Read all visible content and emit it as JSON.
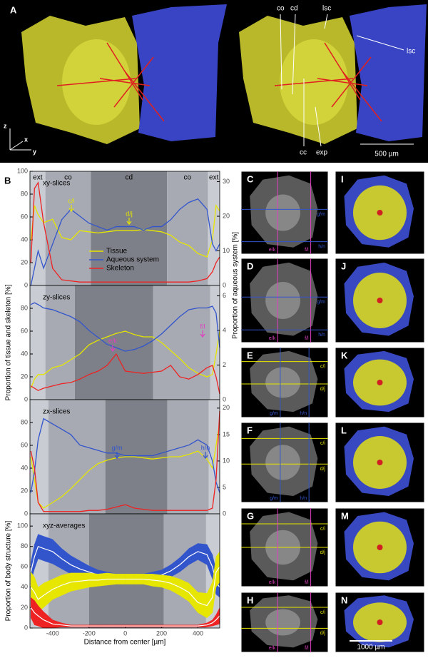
{
  "panel_a": {
    "label": "A",
    "labels": [
      "co",
      "cd",
      "lsc",
      "lsc",
      "cc",
      "exp"
    ],
    "axes": [
      "z",
      "x",
      "y"
    ],
    "scale_bar": "500 µm"
  },
  "panel_b": {
    "label": "B",
    "ylabel_left": "Proportion of tissue and skeleton [%]",
    "ylabel_right": "Proportion of aqueous system [%]"
  },
  "chart_data": [
    {
      "type": "line",
      "title": "xy-slices",
      "x": [
        -520,
        -500,
        -480,
        -450,
        -400,
        -350,
        -300,
        -250,
        -200,
        -150,
        -100,
        -50,
        0,
        50,
        100,
        150,
        200,
        250,
        300,
        350,
        400,
        450,
        480,
        500,
        520
      ],
      "xlim": [
        -525,
        520
      ],
      "ylim": [
        0,
        100
      ],
      "yticks": [
        0,
        20,
        40,
        60,
        80,
        100
      ],
      "y2lim": [
        0,
        33
      ],
      "y2ticks": [
        0,
        10,
        20,
        30
      ],
      "zones": [
        {
          "label": "ext",
          "range": [
            -525,
            -440
          ],
          "color": "#c9ccd3"
        },
        {
          "label": "co",
          "range": [
            -440,
            -190
          ],
          "color": "#a7aab2"
        },
        {
          "label": "cd",
          "range": [
            -190,
            230
          ],
          "color": "#7d8088"
        },
        {
          "label": "co",
          "range": [
            230,
            455
          ],
          "color": "#a7aab2"
        },
        {
          "label": "ext",
          "range": [
            455,
            520
          ],
          "color": "#c9ccd3"
        }
      ],
      "series": [
        {
          "name": "Tissue",
          "color": "#e6e600",
          "values": [
            40,
            70,
            62,
            55,
            58,
            42,
            40,
            48,
            47,
            46,
            47,
            48,
            48,
            48,
            49,
            48,
            47,
            44,
            38,
            35,
            28,
            25,
            40,
            70,
            65
          ]
        },
        {
          "name": "Aqueous system",
          "color": "#3355cc",
          "axis": "y2",
          "values": [
            0,
            5,
            10,
            5,
            12,
            19,
            22,
            20,
            18,
            17,
            16,
            17,
            17,
            17,
            16,
            17,
            17,
            19,
            22,
            24,
            25,
            22,
            12,
            10,
            12
          ]
        },
        {
          "name": "Skeleton",
          "color": "#ee2222",
          "values": [
            20,
            85,
            90,
            55,
            15,
            5,
            4,
            3,
            3,
            3,
            3,
            3,
            3,
            3,
            3,
            3,
            3,
            3,
            3,
            3,
            4,
            6,
            12,
            20,
            25
          ]
        }
      ],
      "annotations": [
        {
          "text": "c/i",
          "color": "#e6e600"
        },
        {
          "text": "d/j",
          "color": "#e6e600"
        }
      ]
    },
    {
      "type": "line",
      "title": "zy-slices",
      "x": [
        -520,
        -500,
        -480,
        -450,
        -400,
        -350,
        -300,
        -250,
        -200,
        -150,
        -100,
        -50,
        0,
        50,
        100,
        150,
        200,
        250,
        300,
        350,
        400,
        450,
        480,
        500,
        520
      ],
      "xlim": [
        -525,
        520
      ],
      "ylim": [
        0,
        100
      ],
      "yticks": [
        0,
        20,
        40,
        60,
        80
      ],
      "y2lim": [
        0,
        6.6
      ],
      "y2ticks": [
        0,
        2,
        4,
        6
      ],
      "zones": [
        {
          "range": [
            -525,
            -440
          ],
          "color": "#c9ccd3"
        },
        {
          "range": [
            -440,
            -278
          ],
          "color": "#a7aab2"
        },
        {
          "range": [
            -278,
            153
          ],
          "color": "#7d8088"
        },
        {
          "range": [
            153,
            467
          ],
          "color": "#a7aab2"
        },
        {
          "range": [
            467,
            520
          ],
          "color": "#c9ccd3"
        }
      ],
      "series": [
        {
          "color": "#e6e600",
          "values": [
            10,
            18,
            22,
            22,
            28,
            30,
            35,
            40,
            48,
            52,
            55,
            58,
            60,
            57,
            55,
            55,
            50,
            43,
            36,
            28,
            23,
            20,
            22,
            40,
            60
          ]
        },
        {
          "color": "#3355cc",
          "axis": "y2",
          "values": [
            5.5,
            5.6,
            5.5,
            5.3,
            5.2,
            5.0,
            4.8,
            4.5,
            4.0,
            3.6,
            3.2,
            3.0,
            2.8,
            2.9,
            3.1,
            3.4,
            3.8,
            4.3,
            4.8,
            5.2,
            5.3,
            5.3,
            5.4,
            5.0,
            3.0
          ]
        },
        {
          "color": "#ee2222",
          "values": [
            12,
            10,
            8,
            10,
            12,
            14,
            15,
            18,
            22,
            25,
            30,
            40,
            25,
            24,
            23,
            24,
            25,
            30,
            20,
            18,
            22,
            28,
            30,
            20,
            5
          ]
        }
      ],
      "annotations": [
        {
          "text": "e/k",
          "color": "#e040c0"
        },
        {
          "text": "f/l",
          "color": "#e040c0"
        }
      ]
    },
    {
      "type": "line",
      "title": "zx-slices",
      "x": [
        -520,
        -500,
        -480,
        -450,
        -400,
        -350,
        -300,
        -250,
        -200,
        -150,
        -100,
        -50,
        0,
        50,
        100,
        150,
        200,
        250,
        300,
        350,
        400,
        450,
        480,
        500,
        520
      ],
      "xlim": [
        -525,
        520
      ],
      "ylim": [
        0,
        100
      ],
      "yticks": [
        0,
        20,
        40,
        60,
        80
      ],
      "y2lim": [
        0,
        21.6
      ],
      "y2ticks": [
        0,
        5,
        10,
        15,
        20
      ],
      "zones": [
        {
          "range": [
            -525,
            -423
          ],
          "color": "#c9ccd3"
        },
        {
          "range": [
            -423,
            -110
          ],
          "color": "#a7aab2"
        },
        {
          "range": [
            -110,
            231
          ],
          "color": "#7d8088"
        },
        {
          "range": [
            231,
            460
          ],
          "color": "#a7aab2"
        },
        {
          "range": [
            460,
            520
          ],
          "color": "#c9ccd3"
        }
      ],
      "series": [
        {
          "color": "#e6e600",
          "values": [
            50,
            30,
            10,
            5,
            10,
            15,
            22,
            30,
            38,
            44,
            47,
            49,
            50,
            50,
            49,
            48,
            49,
            50,
            50,
            52,
            55,
            48,
            40,
            60,
            80
          ]
        },
        {
          "color": "#3355cc",
          "axis": "y2",
          "values": [
            4,
            8,
            14,
            18,
            17,
            16,
            15,
            13,
            12.5,
            12,
            11.5,
            11.5,
            11,
            11,
            11,
            11,
            11.5,
            12,
            12.5,
            13,
            14,
            13,
            10,
            6,
            4
          ]
        },
        {
          "color": "#ee2222",
          "values": [
            55,
            40,
            10,
            2,
            2,
            2,
            2,
            2,
            3,
            3,
            4,
            6,
            8,
            5,
            4,
            3,
            3,
            3,
            3,
            3,
            3,
            3,
            5,
            30,
            90
          ]
        }
      ],
      "annotations": [
        {
          "text": "g/m",
          "color": "#3355cc"
        },
        {
          "text": "h/n",
          "color": "#3355cc"
        }
      ]
    },
    {
      "type": "band",
      "title": "xyz-averages",
      "ylabel": "Proportion of body structure [%]",
      "xlabel": "Distance from center [µm]",
      "x": [
        -520,
        -500,
        -480,
        -450,
        -400,
        -350,
        -300,
        -250,
        -200,
        -150,
        -100,
        -50,
        0,
        50,
        100,
        150,
        200,
        250,
        300,
        350,
        400,
        450,
        480,
        500,
        520
      ],
      "xlim": [
        -525,
        520
      ],
      "xticks": [
        -400,
        -200,
        0,
        200,
        400
      ],
      "ylim": [
        0,
        112
      ],
      "yticks": [
        0,
        20,
        40,
        60,
        80,
        100
      ],
      "mean_color": "#ffffff",
      "zones": [
        {
          "range": [
            -525,
            -423
          ],
          "color": "#c9ccd3"
        },
        {
          "range": [
            -423,
            -200
          ],
          "color": "#a7aab2"
        },
        {
          "range": [
            -200,
            212
          ],
          "color": "#7d8088"
        },
        {
          "range": [
            212,
            445
          ],
          "color": "#a7aab2"
        },
        {
          "range": [
            445,
            520
          ],
          "color": "#c9ccd3"
        }
      ],
      "series": [
        {
          "color": "#3355cc",
          "values": [
            55,
            70,
            80,
            78,
            75,
            68,
            62,
            58,
            55,
            52,
            50,
            49,
            48,
            48,
            49,
            50,
            52,
            56,
            62,
            70,
            75,
            72,
            60,
            45,
            40
          ],
          "errors": [
            10,
            12,
            12,
            12,
            12,
            10,
            9,
            8,
            6,
            5,
            5,
            4,
            4,
            4,
            4,
            5,
            5,
            6,
            7,
            8,
            8,
            10,
            12,
            12,
            10
          ]
        },
        {
          "color": "#e6e600",
          "values": [
            40,
            35,
            28,
            32,
            38,
            42,
            45,
            46,
            47,
            47,
            48,
            48,
            48,
            48,
            48,
            47,
            46,
            44,
            40,
            35,
            25,
            22,
            30,
            55,
            60
          ],
          "errors": [
            15,
            15,
            12,
            12,
            10,
            10,
            9,
            8,
            7,
            6,
            6,
            5,
            5,
            5,
            5,
            6,
            6,
            7,
            8,
            9,
            10,
            12,
            15,
            15,
            15
          ]
        },
        {
          "color": "#ee2222",
          "values": [
            20,
            15,
            12,
            8,
            4,
            3,
            2,
            2,
            2,
            2,
            2,
            2,
            2,
            2,
            2,
            2,
            2,
            2,
            2,
            2,
            2,
            3,
            5,
            8,
            12
          ],
          "errors": [
            10,
            12,
            10,
            8,
            4,
            2,
            1,
            1,
            1,
            1,
            1,
            1,
            1,
            1,
            1,
            1,
            1,
            1,
            1,
            1,
            1,
            2,
            3,
            5,
            8
          ]
        }
      ]
    }
  ],
  "images": [
    {
      "label": "C",
      "lines": [
        "e/k",
        "f/l",
        "g/m",
        "h/n"
      ]
    },
    {
      "label": "D",
      "lines": [
        "e/k",
        "f/l",
        "g/m",
        "h/n"
      ]
    },
    {
      "label": "E",
      "lines": [
        "c/i",
        "d/j",
        "g/m",
        "h/n"
      ]
    },
    {
      "label": "F",
      "lines": [
        "c/i",
        "d/j",
        "g/m",
        "h/n"
      ]
    },
    {
      "label": "G",
      "lines": [
        "c/i",
        "d/j",
        "e/k",
        "f/l"
      ]
    },
    {
      "label": "H",
      "lines": [
        "c/i",
        "d/j",
        "e/k",
        "f/l"
      ]
    },
    {
      "label": "I"
    },
    {
      "label": "J"
    },
    {
      "label": "K"
    },
    {
      "label": "L"
    },
    {
      "label": "M"
    },
    {
      "label": "N",
      "scale_bar": "1000 µm"
    }
  ]
}
